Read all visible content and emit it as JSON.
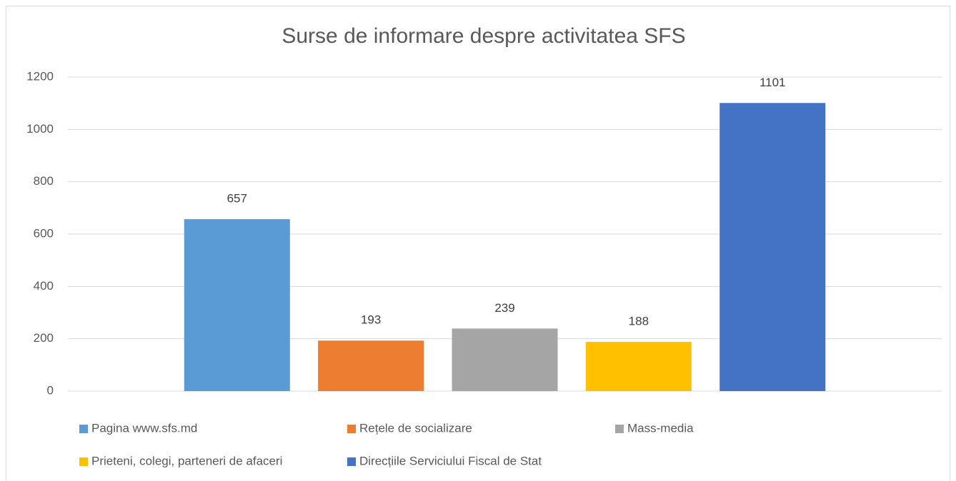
{
  "chart_data": {
    "type": "bar",
    "title": "Surse de informare despre activitatea SFS",
    "categories": [
      null
    ],
    "series": [
      {
        "name": "Pagina www.sfs.md",
        "color": "#5b9bd5",
        "values": [
          657
        ]
      },
      {
        "name": "Rețele de socializare",
        "color": "#ed7d31",
        "values": [
          193
        ]
      },
      {
        "name": "Mass-media",
        "color": "#a5a5a5",
        "values": [
          239
        ]
      },
      {
        "name": "Prieteni, colegi, parteneri de afaceri",
        "color": "#ffc000",
        "values": [
          188
        ]
      },
      {
        "name": "Direcțiile Serviciului Fiscal de Stat",
        "color": "#4472c4",
        "values": [
          1101
        ]
      }
    ],
    "ylim": [
      0,
      1200
    ],
    "yticks": [
      0,
      200,
      400,
      600,
      800,
      1000,
      1200
    ],
    "grid": true,
    "legend": "bottom"
  }
}
